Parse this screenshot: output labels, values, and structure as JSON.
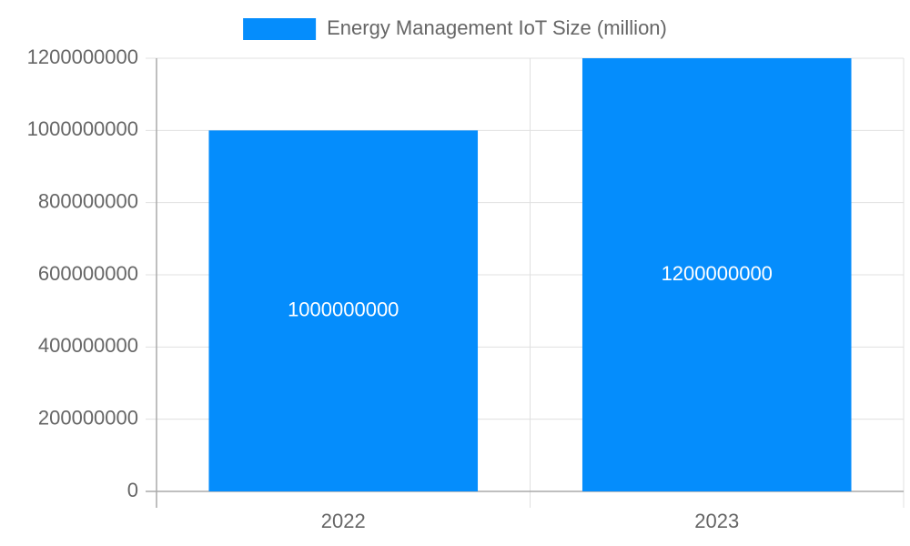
{
  "chart_data": {
    "type": "bar",
    "categories": [
      "2022",
      "2023"
    ],
    "series": [
      {
        "name": "Energy Management IoT Size (million)",
        "color": "#058dfc",
        "values": [
          1000000000,
          1200000000
        ]
      }
    ],
    "ylim": [
      0,
      1200000000
    ],
    "yticks": [
      0,
      200000000,
      400000000,
      600000000,
      800000000,
      1000000000,
      1200000000
    ],
    "grid": true,
    "legend": "top",
    "data_labels": true
  }
}
